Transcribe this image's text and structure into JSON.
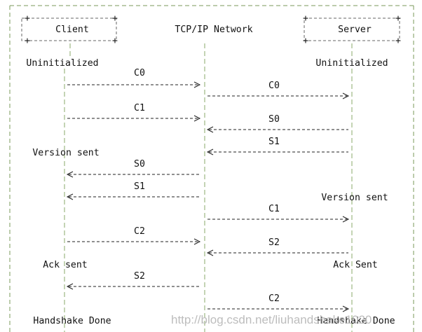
{
  "diagram": {
    "participants": {
      "client": "Client",
      "network": "TCP/IP Network",
      "server": "Server"
    },
    "states": {
      "client_uninitialized": "Uninitialized",
      "server_uninitialized": "Uninitialized",
      "client_version_sent": "Version sent",
      "server_version_sent": "Version sent",
      "client_ack_sent": "Ack sent",
      "server_ack_sent": "Ack Sent",
      "client_handshake_done": "Handshake Done",
      "server_handshake_done": "Handshake Done"
    },
    "messages": [
      {
        "label": "C0",
        "from": "client",
        "to": "network"
      },
      {
        "label": "C0",
        "from": "network",
        "to": "server"
      },
      {
        "label": "C1",
        "from": "client",
        "to": "network"
      },
      {
        "label": "S0",
        "from": "server",
        "to": "network"
      },
      {
        "label": "S1",
        "from": "server",
        "to": "network"
      },
      {
        "label": "S0",
        "from": "network",
        "to": "client"
      },
      {
        "label": "S1",
        "from": "network",
        "to": "client"
      },
      {
        "label": "C1",
        "from": "network",
        "to": "server"
      },
      {
        "label": "C2",
        "from": "client",
        "to": "network"
      },
      {
        "label": "S2",
        "from": "server",
        "to": "network"
      },
      {
        "label": "S2",
        "from": "network",
        "to": "client"
      },
      {
        "label": "C2",
        "from": "network",
        "to": "server"
      }
    ]
  },
  "watermark": "http://blog.csdn.net/liuhandshake1020"
}
